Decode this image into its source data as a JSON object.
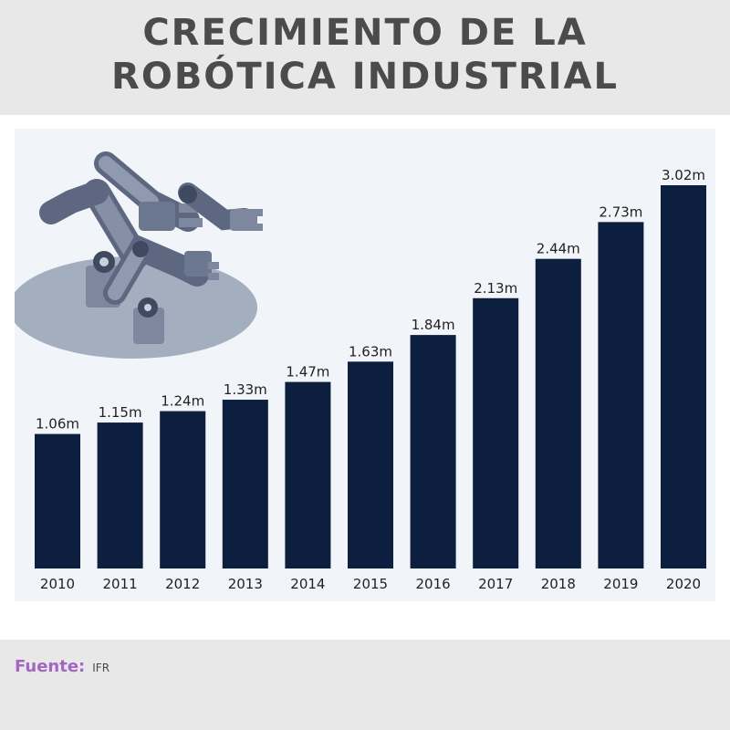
{
  "header": {
    "title_line1": "CRECIMIENTO DE LA",
    "title_line2": "ROBÓTICA INDUSTRIAL"
  },
  "chart_data": {
    "type": "bar",
    "categories": [
      "2010",
      "2011",
      "2012",
      "2013",
      "2014",
      "2015",
      "2016",
      "2017",
      "2018",
      "2019",
      "2020"
    ],
    "values": [
      1.06,
      1.15,
      1.24,
      1.33,
      1.47,
      1.63,
      1.84,
      2.13,
      2.44,
      2.73,
      3.02
    ],
    "data_labels": [
      "1.06m",
      "1.15m",
      "1.24m",
      "1.33m",
      "1.47m",
      "1.63m",
      "1.84m",
      "2.13m",
      "2.44m",
      "2.73m",
      "3.02m"
    ],
    "ylim": [
      0,
      3.02
    ],
    "grid": false,
    "bar_color": "#0d1f3e",
    "illustration": "robotic-arms"
  },
  "footer": {
    "source_label": "Fuente:",
    "source_value": "IFR"
  },
  "colors": {
    "title": "#4b4b4b",
    "accent": "#a466c0",
    "panel": "#f1f4f8",
    "background": "#e8e8e8"
  }
}
